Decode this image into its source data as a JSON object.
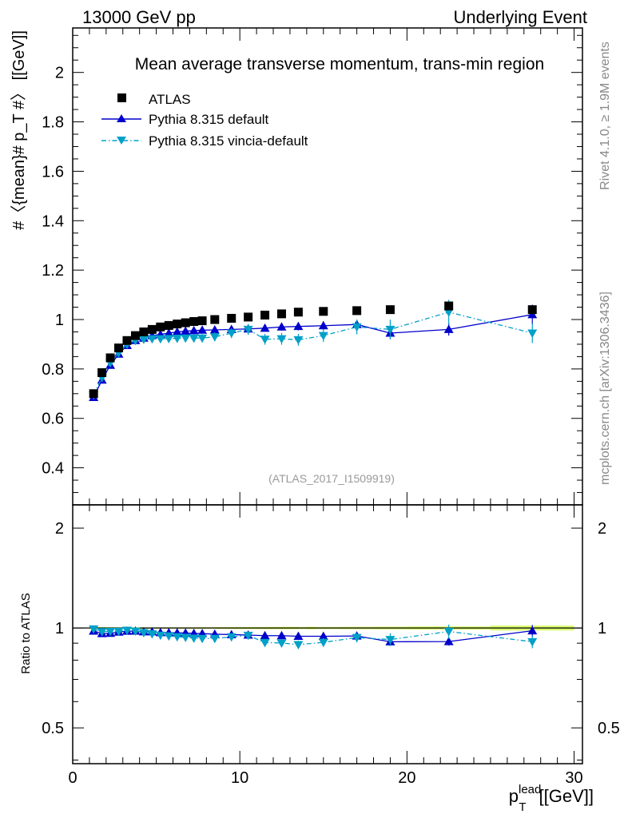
{
  "header": {
    "left": "13000 GeV pp",
    "right": "Underlying Event"
  },
  "side_text": {
    "rivet": "Rivet 4.1.0, ≥ 1.9M events",
    "source": "mcplots.cern.ch [arXiv:1306.3436]"
  },
  "chart_data": [
    {
      "type": "scatter",
      "panel": "main",
      "title": "Mean average transverse momentum, trans-min region",
      "watermark": "(ATLAS_2017_I1509919)",
      "ylabel": "#〈{mean}# p_T #〉 [[GeV]]",
      "ylim": [
        0.25,
        2.18
      ],
      "xlim": [
        0,
        30.5
      ],
      "yticks": [
        0.4,
        0.6,
        0.8,
        1,
        1.2,
        1.4,
        1.6,
        1.8,
        2
      ],
      "yticklabels": [
        "0.4",
        "0.6",
        "0.8",
        "1",
        "1.2",
        "1.4",
        "1.6",
        "1.8",
        "2"
      ],
      "legend": [
        "ATLAS",
        "Pythia 8.315 default",
        "Pythia 8.315 vincia-default"
      ],
      "legend_position": "top-left",
      "x": [
        1.25,
        1.75,
        2.25,
        2.75,
        3.25,
        3.75,
        4.25,
        4.75,
        5.25,
        5.75,
        6.25,
        6.75,
        7.25,
        7.75,
        8.5,
        9.5,
        10.5,
        11.5,
        12.5,
        13.5,
        15,
        17,
        19,
        22.5,
        27.5
      ],
      "series": [
        {
          "name": "ATLAS",
          "color": "#000000",
          "marker": "square",
          "values": [
            0.7,
            0.785,
            0.845,
            0.885,
            0.915,
            0.935,
            0.95,
            0.96,
            0.97,
            0.976,
            0.982,
            0.987,
            0.992,
            0.995,
            1.0,
            1.005,
            1.01,
            1.018,
            1.023,
            1.03,
            1.033,
            1.036,
            1.04,
            1.055,
            1.04
          ],
          "errors": [
            0.005,
            0.005,
            0.005,
            0.005,
            0.005,
            0.005,
            0.005,
            0.005,
            0.005,
            0.005,
            0.005,
            0.005,
            0.005,
            0.005,
            0.005,
            0.006,
            0.006,
            0.007,
            0.007,
            0.008,
            0.008,
            0.009,
            0.01,
            0.012,
            0.018
          ]
        },
        {
          "name": "Pythia 8.315 default",
          "color": "#0000cc",
          "marker": "triangle-up",
          "line": "solid",
          "values": [
            0.685,
            0.755,
            0.815,
            0.86,
            0.895,
            0.915,
            0.925,
            0.935,
            0.94,
            0.945,
            0.95,
            0.953,
            0.955,
            0.957,
            0.958,
            0.96,
            0.962,
            0.965,
            0.97,
            0.972,
            0.975,
            0.98,
            0.945,
            0.96,
            1.02
          ],
          "errors": [
            0.005,
            0.005,
            0.005,
            0.005,
            0.005,
            0.006,
            0.006,
            0.006,
            0.007,
            0.007,
            0.008,
            0.008,
            0.009,
            0.01,
            0.011,
            0.012,
            0.013,
            0.014,
            0.015,
            0.016,
            0.018,
            0.02,
            0.025,
            0.025,
            0.04
          ]
        },
        {
          "name": "Pythia 8.315 vincia-default",
          "color": "#00a0c8",
          "marker": "triangle-down",
          "line": "dash-dot",
          "values": [
            0.695,
            0.765,
            0.825,
            0.865,
            0.9,
            0.915,
            0.92,
            0.922,
            0.922,
            0.923,
            0.924,
            0.925,
            0.925,
            0.925,
            0.93,
            0.945,
            0.96,
            0.92,
            0.922,
            0.918,
            0.935,
            0.97,
            0.96,
            1.03,
            0.945
          ],
          "errors": [
            0.005,
            0.005,
            0.005,
            0.006,
            0.007,
            0.008,
            0.009,
            0.01,
            0.011,
            0.012,
            0.013,
            0.014,
            0.015,
            0.016,
            0.018,
            0.02,
            0.022,
            0.022,
            0.024,
            0.024,
            0.026,
            0.03,
            0.04,
            0.05,
            0.04
          ]
        }
      ]
    },
    {
      "type": "scatter",
      "panel": "ratio",
      "ylabel": "Ratio to ATLAS",
      "xlabel": "p_T^lead [[GeV]]",
      "ylim": [
        0.39,
        2.35
      ],
      "yscale": "log",
      "xlim": [
        0,
        30.5
      ],
      "xticks": [
        0,
        10,
        20,
        30
      ],
      "xticklabels": [
        "0",
        "10",
        "20",
        "30"
      ],
      "yticks": [
        0.5,
        1,
        2
      ],
      "yticklabels": [
        "0.5",
        "1",
        "2"
      ],
      "reference_band": {
        "color": "#ccff33",
        "values": 1
      },
      "series": [
        {
          "name": "Pythia 8.315 default",
          "color": "#0000cc",
          "marker": "triangle-up",
          "values": [
            0.979,
            0.962,
            0.964,
            0.972,
            0.978,
            0.979,
            0.974,
            0.974,
            0.969,
            0.968,
            0.967,
            0.966,
            0.963,
            0.962,
            0.958,
            0.955,
            0.952,
            0.948,
            0.948,
            0.944,
            0.944,
            0.946,
            0.909,
            0.91,
            0.981
          ],
          "errors": [
            0.008,
            0.008,
            0.008,
            0.008,
            0.008,
            0.008,
            0.008,
            0.008,
            0.009,
            0.009,
            0.009,
            0.01,
            0.01,
            0.011,
            0.012,
            0.013,
            0.014,
            0.015,
            0.016,
            0.017,
            0.018,
            0.021,
            0.026,
            0.025,
            0.04
          ]
        },
        {
          "name": "Pythia 8.315 vincia-default",
          "color": "#00a0c8",
          "marker": "triangle-down",
          "values": [
            0.993,
            0.975,
            0.976,
            0.977,
            0.984,
            0.979,
            0.968,
            0.96,
            0.951,
            0.946,
            0.941,
            0.937,
            0.932,
            0.93,
            0.93,
            0.94,
            0.95,
            0.904,
            0.901,
            0.891,
            0.905,
            0.936,
            0.923,
            0.976,
            0.909
          ],
          "errors": [
            0.008,
            0.008,
            0.008,
            0.008,
            0.009,
            0.01,
            0.011,
            0.012,
            0.012,
            0.013,
            0.014,
            0.015,
            0.016,
            0.017,
            0.019,
            0.021,
            0.023,
            0.023,
            0.025,
            0.025,
            0.027,
            0.031,
            0.041,
            0.048,
            0.04
          ]
        }
      ]
    }
  ]
}
